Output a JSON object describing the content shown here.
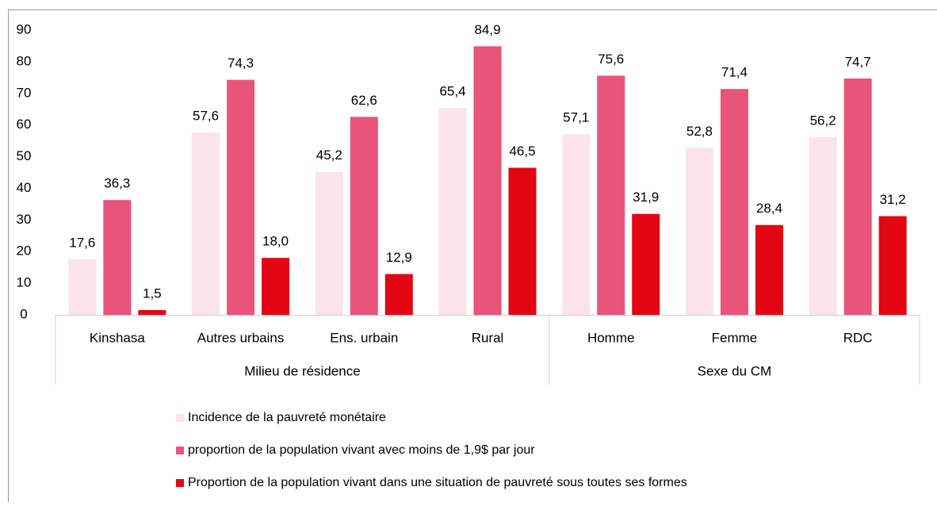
{
  "chart_data": {
    "type": "bar",
    "categories": [
      "Kinshasa",
      "Autres urbains",
      "Ens. urbain",
      "Rural",
      "Homme",
      "Femme",
      "RDC"
    ],
    "group_labels": [
      "Milieu de résidence",
      "Sexe du CM"
    ],
    "group_sizes": [
      4,
      3
    ],
    "series": [
      {
        "name": "Incidence de la pauvreté monétaire",
        "color": "#fbe3ec",
        "values": [
          17.6,
          57.6,
          45.2,
          65.4,
          57.1,
          52.8,
          56.2
        ],
        "value_labels": [
          "17,6",
          "57,6",
          "45,2",
          "65,4",
          "57,1",
          "52,8",
          "56,2"
        ]
      },
      {
        "name": "proportion de la population vivant avec moins de 1,9$ par jour",
        "color": "#e8547a",
        "values": [
          36.3,
          74.3,
          62.6,
          84.9,
          75.6,
          71.4,
          74.7
        ],
        "value_labels": [
          "36,3",
          "74,3",
          "62,6",
          "84,9",
          "75,6",
          "71,4",
          "74,7"
        ]
      },
      {
        "name": "Proportion de la population vivant dans une situation de pauvreté sous toutes ses formes",
        "color": "#e30613",
        "values": [
          1.5,
          18.0,
          12.9,
          46.5,
          31.9,
          28.4,
          31.2
        ],
        "value_labels": [
          "1,5",
          "18,0",
          "12,9",
          "46,5",
          "31,9",
          "28,4",
          "31,2"
        ]
      }
    ],
    "ylim": [
      0,
      90
    ],
    "yticks": [
      0,
      10,
      20,
      30,
      40,
      50,
      60,
      70,
      80,
      90
    ],
    "grid": false
  }
}
